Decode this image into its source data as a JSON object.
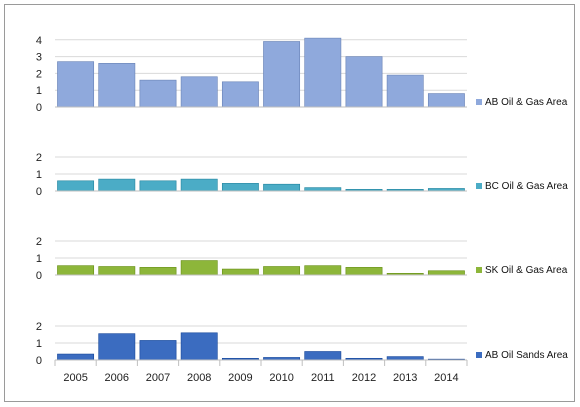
{
  "chart_data": [
    {
      "type": "bar",
      "categories": [
        "2005",
        "2006",
        "2007",
        "2008",
        "2009",
        "2010",
        "2011",
        "2012",
        "2013",
        "2014"
      ],
      "series": [
        {
          "name": "AB Oil & Gas Area",
          "values": [
            2.7,
            2.6,
            1.6,
            1.8,
            1.5,
            3.9,
            4.1,
            3.0,
            1.9,
            0.8
          ]
        }
      ],
      "yticks": [
        0,
        1,
        2,
        3,
        4
      ],
      "ylim": [
        0,
        4.6
      ],
      "color": "#8fa9dc",
      "grid": true,
      "legend_position": "right"
    },
    {
      "type": "bar",
      "categories": [
        "2005",
        "2006",
        "2007",
        "2008",
        "2009",
        "2010",
        "2011",
        "2012",
        "2013",
        "2014"
      ],
      "series": [
        {
          "name": "BC Oil & Gas Area",
          "values": [
            0.6,
            0.7,
            0.6,
            0.7,
            0.45,
            0.4,
            0.2,
            0.1,
            0.1,
            0.15
          ]
        }
      ],
      "yticks": [
        0,
        1,
        2
      ],
      "ylim": [
        0,
        2.4
      ],
      "color": "#4bacc6",
      "grid": true,
      "legend_position": "right"
    },
    {
      "type": "bar",
      "categories": [
        "2005",
        "2006",
        "2007",
        "2008",
        "2009",
        "2010",
        "2011",
        "2012",
        "2013",
        "2014"
      ],
      "series": [
        {
          "name": "SK Oil & Gas Area",
          "values": [
            0.55,
            0.5,
            0.45,
            0.85,
            0.35,
            0.5,
            0.55,
            0.45,
            0.1,
            0.25
          ]
        }
      ],
      "yticks": [
        0,
        1,
        2
      ],
      "ylim": [
        0,
        2.4
      ],
      "color": "#8db63a",
      "grid": true,
      "legend_position": "right"
    },
    {
      "type": "bar",
      "categories": [
        "2005",
        "2006",
        "2007",
        "2008",
        "2009",
        "2010",
        "2011",
        "2012",
        "2013",
        "2014"
      ],
      "series": [
        {
          "name": "AB Oil Sands Area",
          "values": [
            0.35,
            1.55,
            1.15,
            1.6,
            0.1,
            0.15,
            0.5,
            0.1,
            0.2,
            0.05
          ]
        }
      ],
      "yticks": [
        0,
        1,
        2
      ],
      "ylim": [
        0,
        2.4
      ],
      "color": "#3b6cc0",
      "grid": true,
      "legend_position": "right"
    }
  ]
}
